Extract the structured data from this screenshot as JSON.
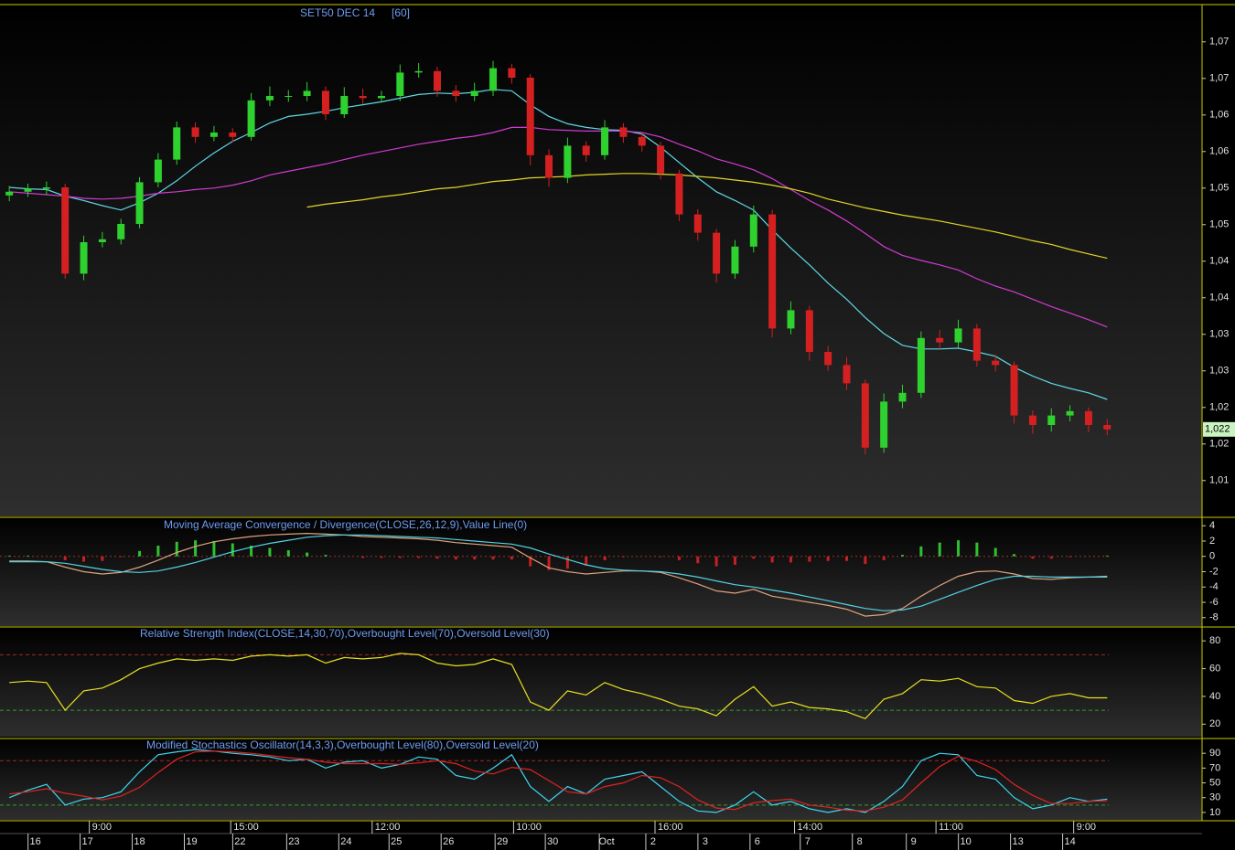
{
  "chart_data": [
    {
      "type": "candlestick",
      "title": "SET50 DEC 14",
      "interval": "[60]",
      "xlim": [
        -0.5,
        64.1
      ],
      "ylim": [
        1010.1,
        1080.1
      ],
      "yticks": [
        {
          "value": 1075,
          "label": "1,07"
        },
        {
          "value": 1070,
          "label": "1,07"
        },
        {
          "value": 1065,
          "label": "1,06"
        },
        {
          "value": 1060,
          "label": "1,06"
        },
        {
          "value": 1055,
          "label": "1,05"
        },
        {
          "value": 1050,
          "label": "1,05"
        },
        {
          "value": 1045,
          "label": "1,04"
        },
        {
          "value": 1040,
          "label": "1,04"
        },
        {
          "value": 1035,
          "label": "1,03"
        },
        {
          "value": 1030,
          "label": "1,03"
        },
        {
          "value": 1025,
          "label": "1,02"
        },
        {
          "value": 1020,
          "label": "1,02"
        },
        {
          "value": 1015,
          "label": "1,01"
        }
      ],
      "xticks": [
        {
          "value": 1.4,
          "label": "16"
        },
        {
          "value": 4.2,
          "label": "17"
        },
        {
          "value": 7.0,
          "label": "18"
        },
        {
          "value": 9.8,
          "label": "19"
        },
        {
          "value": 12.4,
          "label": "22"
        },
        {
          "value": 15.3,
          "label": "23"
        },
        {
          "value": 18.1,
          "label": "24"
        },
        {
          "value": 20.8,
          "label": "25"
        },
        {
          "value": 23.6,
          "label": "26"
        },
        {
          "value": 26.5,
          "label": "29"
        },
        {
          "value": 29.2,
          "label": "30"
        },
        {
          "value": 32.1,
          "label": "Oct"
        },
        {
          "value": 34.6,
          "label": "2"
        },
        {
          "value": 37.4,
          "label": "3"
        },
        {
          "value": 40.2,
          "label": "6"
        },
        {
          "value": 42.9,
          "label": "7"
        },
        {
          "value": 45.7,
          "label": "8"
        },
        {
          "value": 48.6,
          "label": "9"
        },
        {
          "value": 51.4,
          "label": "10"
        },
        {
          "value": 54.2,
          "label": "13"
        },
        {
          "value": 57.0,
          "label": "14"
        }
      ],
      "time_ticks": [
        {
          "value": 4.3,
          "label": "9:00"
        },
        {
          "value": 11.9,
          "label": "15:00"
        },
        {
          "value": 19.5,
          "label": "12:00"
        },
        {
          "value": 27.1,
          "label": "10:00"
        },
        {
          "value": 34.7,
          "label": "16:00"
        },
        {
          "value": 42.2,
          "label": "14:00"
        },
        {
          "value": 49.8,
          "label": "11:00"
        },
        {
          "value": 57.2,
          "label": "9:00"
        }
      ],
      "up_color": "#2ed12e",
      "down_color": "#d42020",
      "open": [
        1054.0,
        1054.5,
        1054.9,
        1055.1,
        1043.3,
        1047.6,
        1048.0,
        1050.1,
        1055.8,
        1058.9,
        1063.3,
        1062.0,
        1062.6,
        1062.0,
        1067.0,
        1067.6,
        1067.6,
        1068.3,
        1065.1,
        1067.6,
        1067.3,
        1067.6,
        1070.8,
        1071.0,
        1068.3,
        1067.6,
        1068.3,
        1071.4,
        1070.1,
        1059.5,
        1056.4,
        1060.8,
        1059.5,
        1063.3,
        1062.0,
        1060.8,
        1057.0,
        1051.4,
        1048.9,
        1043.3,
        1047.0,
        1051.4,
        1035.8,
        1038.3,
        1032.6,
        1030.8,
        1028.3,
        1019.5,
        1025.8,
        1027.0,
        1034.5,
        1033.9,
        1035.8,
        1031.4,
        1030.8,
        1023.9,
        1022.6,
        1023.9,
        1024.5,
        1022.6
      ],
      "high": [
        1055.3,
        1055.6,
        1055.9,
        1055.6,
        1048.5,
        1049.0,
        1050.8,
        1056.5,
        1059.8,
        1064.1,
        1064.0,
        1063.5,
        1063.2,
        1068.0,
        1068.9,
        1068.4,
        1069.5,
        1068.9,
        1068.8,
        1068.6,
        1068.3,
        1071.9,
        1072.1,
        1071.6,
        1069.1,
        1069.4,
        1072.4,
        1072.0,
        1070.6,
        1060.3,
        1061.9,
        1061.4,
        1064.3,
        1063.9,
        1062.6,
        1061.3,
        1057.5,
        1052.1,
        1049.4,
        1047.9,
        1052.6,
        1052.0,
        1039.5,
        1038.9,
        1033.4,
        1031.9,
        1028.8,
        1026.9,
        1028.1,
        1035.4,
        1035.6,
        1037.0,
        1036.4,
        1032.2,
        1031.3,
        1024.6,
        1024.9,
        1025.3,
        1025.0,
        1023.4
      ],
      "low": [
        1053.2,
        1053.8,
        1054.1,
        1042.6,
        1042.4,
        1046.9,
        1047.3,
        1049.5,
        1055.1,
        1058.2,
        1061.2,
        1061.4,
        1061.3,
        1061.5,
        1066.2,
        1066.8,
        1066.9,
        1064.3,
        1064.6,
        1066.5,
        1066.7,
        1066.9,
        1070.1,
        1067.5,
        1066.8,
        1066.9,
        1067.6,
        1069.3,
        1058.1,
        1055.2,
        1055.7,
        1058.6,
        1058.9,
        1061.2,
        1060.0,
        1056.2,
        1050.5,
        1047.8,
        1042.1,
        1042.6,
        1046.2,
        1034.6,
        1035.0,
        1031.4,
        1030.0,
        1027.4,
        1018.6,
        1018.8,
        1024.9,
        1026.3,
        1033.0,
        1033.2,
        1030.6,
        1029.9,
        1022.8,
        1021.4,
        1021.7,
        1023.1,
        1021.6,
        1021.2
      ],
      "close": [
        1054.5,
        1054.9,
        1055.1,
        1043.3,
        1047.6,
        1048.0,
        1050.1,
        1055.8,
        1058.9,
        1063.3,
        1062.0,
        1062.6,
        1062.0,
        1067.0,
        1067.6,
        1067.6,
        1068.3,
        1065.1,
        1067.6,
        1067.3,
        1067.6,
        1070.8,
        1071.0,
        1068.3,
        1067.6,
        1068.3,
        1071.4,
        1070.1,
        1059.5,
        1056.4,
        1060.8,
        1059.5,
        1063.3,
        1062.0,
        1060.8,
        1057.0,
        1051.4,
        1048.9,
        1043.3,
        1047.0,
        1051.4,
        1035.8,
        1038.3,
        1032.6,
        1030.8,
        1028.3,
        1019.5,
        1025.8,
        1027.0,
        1034.5,
        1033.9,
        1035.8,
        1031.4,
        1030.8,
        1023.9,
        1022.6,
        1023.9,
        1024.5,
        1022.6,
        1022.0
      ],
      "last_label": "1,022",
      "series": [
        {
          "color": "#5fd8e6",
          "values": [
            1055.1,
            1054.9,
            1054.8,
            1053.9,
            1053.3,
            1052.6,
            1052.0,
            1053.0,
            1054.3,
            1056.0,
            1058.0,
            1059.8,
            1061.4,
            1062.6,
            1063.9,
            1064.8,
            1065.1,
            1065.5,
            1066.0,
            1066.4,
            1066.8,
            1067.3,
            1067.8,
            1068.0,
            1067.9,
            1068.1,
            1068.5,
            1068.3,
            1066.4,
            1064.8,
            1063.8,
            1063.3,
            1063.0,
            1062.9,
            1062.4,
            1060.6,
            1058.5,
            1056.4,
            1054.5,
            1053.3,
            1052.0,
            1049.3,
            1046.8,
            1044.5,
            1042.0,
            1039.8,
            1037.3,
            1035.1,
            1033.5,
            1033.0,
            1033.0,
            1033.1,
            1032.6,
            1032.0,
            1030.5,
            1029.3,
            1028.3,
            1027.6,
            1027.0,
            1026.1
          ]
        },
        {
          "color": "#d23ad2",
          "values": [
            1054.5,
            1054.3,
            1054.1,
            1053.9,
            1053.6,
            1053.5,
            1053.6,
            1053.9,
            1054.3,
            1054.5,
            1054.8,
            1055.0,
            1055.4,
            1056.0,
            1056.8,
            1057.3,
            1057.8,
            1058.3,
            1058.9,
            1059.5,
            1060.0,
            1060.5,
            1061.0,
            1061.4,
            1061.8,
            1062.1,
            1062.6,
            1063.3,
            1063.3,
            1063.0,
            1062.9,
            1062.8,
            1062.8,
            1062.8,
            1062.6,
            1062.0,
            1061.0,
            1060.1,
            1059.0,
            1058.3,
            1057.5,
            1056.3,
            1054.8,
            1053.3,
            1052.0,
            1050.5,
            1048.8,
            1047.0,
            1045.8,
            1045.1,
            1044.5,
            1043.8,
            1042.6,
            1041.6,
            1040.8,
            1039.8,
            1038.8,
            1037.9,
            1037.0,
            1036.0
          ]
        },
        {
          "color": "#e3d628",
          "values": [
            null,
            null,
            null,
            null,
            null,
            null,
            null,
            null,
            null,
            null,
            null,
            null,
            null,
            null,
            null,
            null,
            1052.4,
            1052.8,
            1053.1,
            1053.4,
            1053.8,
            1054.1,
            1054.5,
            1054.9,
            1055.1,
            1055.5,
            1055.9,
            1056.1,
            1056.4,
            1056.5,
            1056.6,
            1056.8,
            1056.9,
            1057.0,
            1057.0,
            1056.9,
            1056.8,
            1056.6,
            1056.4,
            1056.1,
            1055.8,
            1055.4,
            1054.9,
            1054.3,
            1053.5,
            1052.9,
            1052.3,
            1051.8,
            1051.3,
            1050.9,
            1050.5,
            1050.0,
            1049.5,
            1049.0,
            1048.4,
            1047.8,
            1047.3,
            1046.6,
            1046.0,
            1045.4
          ]
        }
      ]
    },
    {
      "type": "macd",
      "title": "Moving Average Convergence / Divergence(CLOSE,26,12,9),Value Line(0)",
      "ylim": [
        -9.1,
        5.1
      ],
      "yticks": [
        4,
        2,
        0,
        -2,
        -4,
        -6,
        -8
      ],
      "value_line": 0,
      "up_color": "#30c030",
      "down_color": "#c82020",
      "histogram": [
        0.1,
        0.1,
        0.0,
        -0.5,
        -0.7,
        -0.6,
        -0.1,
        0.7,
        1.4,
        1.9,
        2.1,
        2.0,
        1.7,
        1.4,
        1.1,
        0.8,
        0.5,
        0.2,
        0.0,
        -0.2,
        -0.2,
        -0.2,
        -0.2,
        -0.3,
        -0.4,
        -0.4,
        -0.4,
        -0.4,
        -1.3,
        -1.8,
        -1.6,
        -1.2,
        -0.5,
        -0.1,
        0.0,
        -0.1,
        -0.5,
        -0.9,
        -1.3,
        -1.1,
        -0.3,
        -0.8,
        -0.8,
        -0.7,
        -0.6,
        -0.6,
        -1.0,
        -0.5,
        0.2,
        1.3,
        1.8,
        2.1,
        1.8,
        1.1,
        0.3,
        -0.3,
        -0.3,
        -0.1,
        0.0,
        0.1
      ],
      "series": [
        {
          "color": "#e0a27e",
          "values": [
            -0.6,
            -0.6,
            -0.7,
            -1.4,
            -2.0,
            -2.3,
            -2.1,
            -1.4,
            -0.5,
            0.5,
            1.3,
            1.9,
            2.3,
            2.6,
            2.8,
            2.9,
            3.0,
            2.9,
            2.8,
            2.6,
            2.5,
            2.4,
            2.3,
            2.1,
            1.8,
            1.6,
            1.4,
            1.2,
            -0.2,
            -1.5,
            -2.0,
            -2.3,
            -2.1,
            -1.9,
            -1.9,
            -2.1,
            -2.8,
            -3.6,
            -4.5,
            -4.8,
            -4.3,
            -5.2,
            -5.6,
            -6.0,
            -6.4,
            -6.9,
            -7.8,
            -7.6,
            -6.8,
            -5.2,
            -3.8,
            -2.6,
            -2.0,
            -1.9,
            -2.3,
            -2.9,
            -3.0,
            -2.8,
            -2.7,
            -2.6
          ]
        },
        {
          "color": "#52d2e2",
          "values": [
            -0.7,
            -0.7,
            -0.7,
            -0.9,
            -1.3,
            -1.7,
            -2.0,
            -2.1,
            -1.9,
            -1.4,
            -0.8,
            -0.1,
            0.6,
            1.2,
            1.7,
            2.1,
            2.5,
            2.7,
            2.8,
            2.8,
            2.7,
            2.6,
            2.5,
            2.4,
            2.2,
            2.0,
            1.8,
            1.6,
            1.1,
            0.3,
            -0.4,
            -1.1,
            -1.6,
            -1.8,
            -1.9,
            -2.0,
            -2.3,
            -2.7,
            -3.2,
            -3.7,
            -4.0,
            -4.4,
            -4.8,
            -5.3,
            -5.8,
            -6.3,
            -6.8,
            -7.1,
            -7.0,
            -6.5,
            -5.6,
            -4.7,
            -3.8,
            -3.0,
            -2.6,
            -2.6,
            -2.7,
            -2.7,
            -2.7,
            -2.7
          ]
        }
      ]
    },
    {
      "type": "oscillator",
      "title": "Relative Strength Index(CLOSE,14,30,70),Overbought Level(70),Oversold Level(30)",
      "ylim": [
        11,
        90
      ],
      "yticks": [
        80,
        60,
        40,
        20
      ],
      "overbought": 70,
      "oversold": 30,
      "series": [
        {
          "color": "#e8e020",
          "values": [
            50,
            51,
            50,
            30,
            44,
            46,
            52,
            60,
            64,
            67,
            66,
            67,
            66,
            69,
            70,
            69,
            70,
            64,
            68,
            67,
            68,
            71,
            70,
            64,
            62,
            63,
            67,
            63,
            36,
            30,
            44,
            41,
            50,
            45,
            42,
            38,
            33,
            31,
            26,
            38,
            47,
            33,
            36,
            32,
            31,
            29,
            24,
            38,
            42,
            52,
            51,
            53,
            47,
            46,
            37,
            35,
            40,
            42,
            39,
            39
          ]
        }
      ]
    },
    {
      "type": "oscillator",
      "title": "Modified Stochastics Oscillator(14,3,3),Overbought Level(80),Oversold Level(20)",
      "ylim": [
        0,
        110
      ],
      "yticks": [
        90,
        70,
        50,
        30,
        10
      ],
      "overbought": 80,
      "oversold": 20,
      "series": [
        {
          "color": "#3ed6f0",
          "values": [
            30,
            40,
            48,
            20,
            28,
            30,
            38,
            65,
            88,
            92,
            95,
            93,
            90,
            88,
            85,
            80,
            82,
            70,
            78,
            80,
            70,
            75,
            85,
            82,
            60,
            55,
            70,
            88,
            45,
            25,
            45,
            35,
            55,
            60,
            65,
            45,
            25,
            12,
            10,
            20,
            38,
            20,
            25,
            15,
            10,
            15,
            10,
            25,
            45,
            80,
            90,
            88,
            60,
            55,
            30,
            15,
            20,
            30,
            25,
            28
          ]
        },
        {
          "color": "#e02222",
          "values": [
            35,
            38,
            42,
            36,
            32,
            27,
            32,
            44,
            64,
            82,
            92,
            93,
            92,
            90,
            87,
            84,
            82,
            78,
            76,
            76,
            76,
            75,
            77,
            80,
            76,
            66,
            62,
            71,
            68,
            53,
            38,
            35,
            45,
            50,
            60,
            57,
            45,
            27,
            16,
            14,
            23,
            26,
            28,
            20,
            17,
            13,
            12,
            17,
            27,
            50,
            72,
            86,
            79,
            68,
            48,
            33,
            22,
            22,
            25,
            26
          ]
        }
      ]
    }
  ]
}
